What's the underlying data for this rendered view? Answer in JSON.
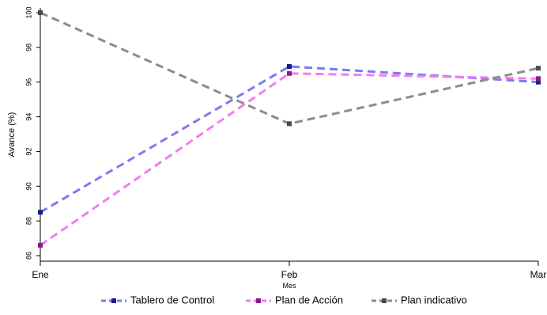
{
  "chart_data": {
    "type": "line",
    "categories": [
      "Ene",
      "Feb",
      "Mar"
    ],
    "xlabel": "Mes",
    "ylabel": "Avance (%)",
    "ylim": [
      86,
      100
    ],
    "yticks": [
      86,
      88,
      90,
      92,
      94,
      96,
      98,
      100
    ],
    "grid": false,
    "legend_position": "bottom",
    "series": [
      {
        "name": "Tablero de Control",
        "values": [
          88.5,
          96.9,
          96.0
        ],
        "line_color": "#7b7bf0",
        "marker_color": "#1a1a8c"
      },
      {
        "name": "Plan de Acción",
        "values": [
          86.6,
          96.5,
          96.2
        ],
        "line_color": "#f27cf2",
        "marker_color": "#8b1a8b"
      },
      {
        "name": "Plan indicativo",
        "values": [
          100.0,
          93.6,
          96.8
        ],
        "line_color": "#8c8c8c",
        "marker_color": "#4a4a4a"
      }
    ]
  }
}
